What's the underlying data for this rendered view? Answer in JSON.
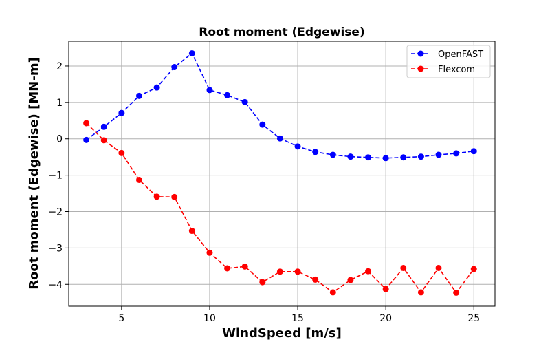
{
  "chart_data": {
    "type": "line",
    "title": "Root moment (Edgewise)",
    "xlabel": "WindSpeed [m/s]",
    "ylabel": "Root moment (Edgewise) [MN-m]",
    "xlim": [
      2,
      26.2
    ],
    "ylim": [
      -4.6,
      2.68
    ],
    "xticks": [
      5,
      10,
      15,
      20,
      25
    ],
    "xtick_labels": [
      "5",
      "10",
      "15",
      "20",
      "25"
    ],
    "yticks": [
      -4,
      -3,
      -2,
      -1,
      0,
      1,
      2
    ],
    "ytick_labels": [
      "−4",
      "−3",
      "−2",
      "−1",
      "0",
      "1",
      "2"
    ],
    "grid": true,
    "legend_position": "top-right",
    "x": [
      3,
      4,
      5,
      6,
      7,
      8,
      9,
      10,
      11,
      12,
      13,
      14,
      15,
      16,
      17,
      18,
      19,
      20,
      21,
      22,
      23,
      24,
      25
    ],
    "series": [
      {
        "name": "OpenFAST",
        "color": "#0000ff",
        "style": "dashed",
        "marker": "circle",
        "values": [
          -0.03,
          0.33,
          0.71,
          1.18,
          1.41,
          1.97,
          2.35,
          1.34,
          1.2,
          1.01,
          0.39,
          0.01,
          -0.21,
          -0.36,
          -0.44,
          -0.49,
          -0.51,
          -0.53,
          -0.51,
          -0.49,
          -0.44,
          -0.4,
          -0.34
        ]
      },
      {
        "name": "Flexcom",
        "color": "#ff0000",
        "style": "dashed",
        "marker": "circle",
        "values": [
          0.43,
          -0.04,
          -0.39,
          -1.13,
          -1.59,
          -1.6,
          -2.53,
          -3.13,
          -3.56,
          -3.51,
          -3.94,
          -3.65,
          -3.65,
          -3.87,
          -4.22,
          -3.88,
          -3.64,
          -4.13,
          -3.55,
          -4.22,
          -3.55,
          -4.23,
          -3.58
        ]
      }
    ]
  }
}
